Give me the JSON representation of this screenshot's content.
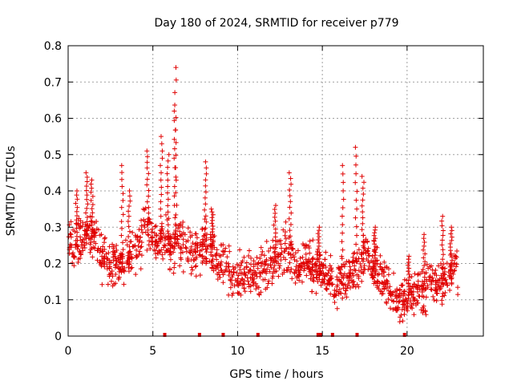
{
  "chart_data": {
    "type": "scatter",
    "title": "Day 180 of 2024, SRMTID for receiver p779",
    "xlabel": "GPS time / hours",
    "ylabel": "SRMTID / TECUs",
    "xlim": [
      0,
      24.5
    ],
    "ylim": [
      0,
      0.8
    ],
    "xticks": [
      0,
      5,
      10,
      15,
      20
    ],
    "yticks": [
      0,
      0.1,
      0.2,
      0.3,
      0.4,
      0.5,
      0.6,
      0.7,
      0.8
    ],
    "xtick_labels": [
      "0",
      "5",
      "10",
      "15",
      "20"
    ],
    "ytick_labels": [
      "0",
      "0.1",
      "0.2",
      "0.3",
      "0.4",
      "0.5",
      "0.6",
      "0.7",
      "0.8"
    ],
    "grid": true,
    "marker": "+",
    "color": "#e00000",
    "series": [
      {
        "name": "SRMTID",
        "hour_profile": [
          [
            0,
            0.26
          ],
          [
            0.5,
            0.24
          ],
          [
            1,
            0.28
          ],
          [
            1.5,
            0.27
          ],
          [
            2,
            0.22
          ],
          [
            2.5,
            0.2
          ],
          [
            3,
            0.2
          ],
          [
            3.5,
            0.2
          ],
          [
            4,
            0.22
          ],
          [
            4.5,
            0.3
          ],
          [
            5,
            0.28
          ],
          [
            5.5,
            0.27
          ],
          [
            6,
            0.25
          ],
          [
            6.5,
            0.26
          ],
          [
            7,
            0.22
          ],
          [
            7.5,
            0.24
          ],
          [
            8,
            0.25
          ],
          [
            8.5,
            0.24
          ],
          [
            9,
            0.21
          ],
          [
            9.5,
            0.18
          ],
          [
            10,
            0.16
          ],
          [
            10.5,
            0.18
          ],
          [
            11,
            0.17
          ],
          [
            11.5,
            0.19
          ],
          [
            12,
            0.2
          ],
          [
            12.5,
            0.22
          ],
          [
            13,
            0.24
          ],
          [
            13.5,
            0.18
          ],
          [
            14,
            0.21
          ],
          [
            14.5,
            0.19
          ],
          [
            15,
            0.17
          ],
          [
            15.5,
            0.15
          ],
          [
            16,
            0.14
          ],
          [
            16.5,
            0.15
          ],
          [
            17,
            0.18
          ],
          [
            17.5,
            0.22
          ],
          [
            18,
            0.2
          ],
          [
            18.5,
            0.16
          ],
          [
            19,
            0.12
          ],
          [
            19.5,
            0.1
          ],
          [
            20,
            0.1
          ],
          [
            20.5,
            0.12
          ],
          [
            21,
            0.13
          ],
          [
            21.5,
            0.15
          ],
          [
            22,
            0.14
          ],
          [
            22.5,
            0.17
          ],
          [
            23,
            0.18
          ]
        ],
        "spikes": [
          {
            "x": 0.5,
            "y": 0.4
          },
          {
            "x": 1.1,
            "y": 0.45
          },
          {
            "x": 1.4,
            "y": 0.43
          },
          {
            "x": 3.2,
            "y": 0.47
          },
          {
            "x": 3.6,
            "y": 0.4
          },
          {
            "x": 4.7,
            "y": 0.51
          },
          {
            "x": 5.5,
            "y": 0.55
          },
          {
            "x": 5.9,
            "y": 0.5
          },
          {
            "x": 6.35,
            "y": 0.74
          },
          {
            "x": 6.3,
            "y": 0.62
          },
          {
            "x": 8.1,
            "y": 0.48
          },
          {
            "x": 8.5,
            "y": 0.35
          },
          {
            "x": 12.2,
            "y": 0.36
          },
          {
            "x": 13.1,
            "y": 0.45
          },
          {
            "x": 14.8,
            "y": 0.3
          },
          {
            "x": 16.2,
            "y": 0.47
          },
          {
            "x": 17,
            "y": 0.52
          },
          {
            "x": 17.4,
            "y": 0.44
          },
          {
            "x": 18.1,
            "y": 0.3
          },
          {
            "x": 20.1,
            "y": 0.22
          },
          {
            "x": 21,
            "y": 0.28
          },
          {
            "x": 22.1,
            "y": 0.33
          },
          {
            "x": 22.6,
            "y": 0.3
          }
        ],
        "baseline_markers": [
          5.7,
          7.75,
          9.15,
          11.2,
          14.75,
          14.9,
          15.6,
          17.05,
          19.85
        ]
      }
    ]
  }
}
